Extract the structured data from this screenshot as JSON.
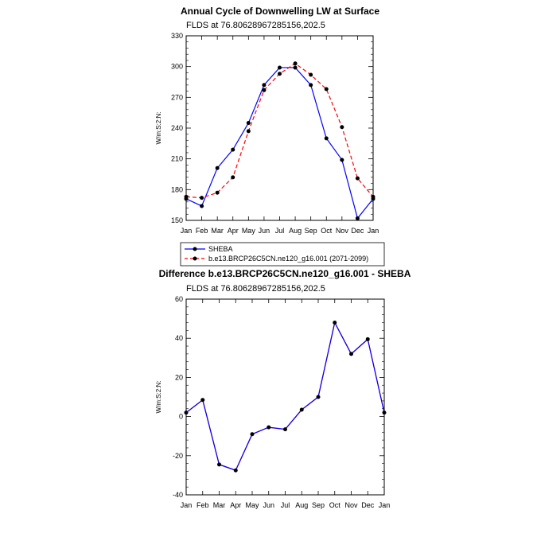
{
  "chart_data": [
    {
      "type": "line",
      "title": "Annual Cycle of Downwelling LW at Surface",
      "subtitle": "FLDS at 76.80628967285156,202.5",
      "ylabel": "W/m:S:2:N:",
      "categories": [
        "Jan",
        "Feb",
        "Mar",
        "Apr",
        "May",
        "Jun",
        "Jul",
        "Aug",
        "Sep",
        "Oct",
        "Nov",
        "Dec",
        "Jan"
      ],
      "ylim": [
        150,
        330
      ],
      "yticks": [
        "150",
        "180",
        "210",
        "240",
        "270",
        "300",
        "330"
      ],
      "series": [
        {
          "name": "SHEBA",
          "color": "#0000ff",
          "dash": "solid",
          "values": [
            171,
            164,
            201,
            219,
            245,
            282,
            299,
            299,
            282,
            230,
            209,
            152,
            171
          ]
        },
        {
          "name": "b.e13.BRCP26C5CN.ne120_g16.001 (2071-2099)",
          "color": "#ff0000",
          "dash": "dashed",
          "values": [
            173,
            172,
            177,
            192,
            237,
            277,
            293,
            303,
            292,
            278,
            241,
            191,
            173
          ]
        }
      ],
      "legend_position": "below"
    },
    {
      "type": "line",
      "title": "Difference b.e13.BRCP26C5CN.ne120_g16.001 - SHEBA",
      "subtitle": "FLDS at 76.80628967285156,202.5",
      "ylabel": "W/m:S:2:N:",
      "categories": [
        "Jan",
        "Feb",
        "Mar",
        "Apr",
        "May",
        "Jun",
        "Jul",
        "Aug",
        "Sep",
        "Oct",
        "Nov",
        "Dec",
        "Jan"
      ],
      "ylim": [
        -40,
        60
      ],
      "yticks": [
        "-40",
        "-20",
        "0",
        "20",
        "40",
        "60"
      ],
      "series": [
        {
          "color": "#0000ff",
          "overlay_color": "#ff0000",
          "values": [
            2,
            8.5,
            -24.5,
            -27.5,
            -9,
            -5.5,
            -6.5,
            3.5,
            10,
            48,
            32,
            39.5,
            2
          ]
        }
      ]
    }
  ]
}
